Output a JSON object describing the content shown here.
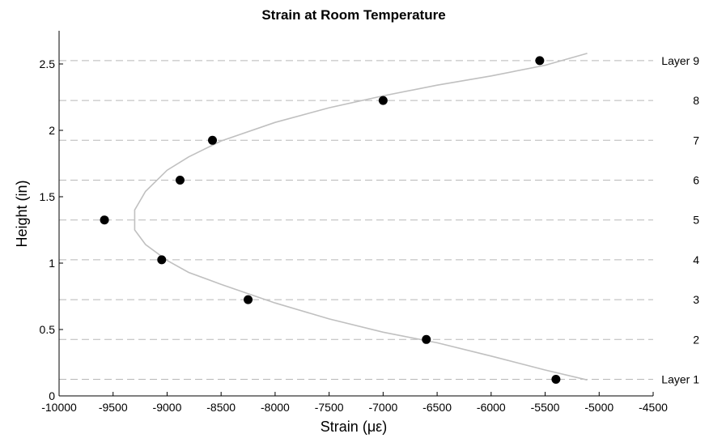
{
  "chart_data": {
    "type": "scatter",
    "title": "Strain at Room Temperature",
    "xlabel": "Strain (με)",
    "ylabel": "Height (in)",
    "xlim": [
      -10000,
      -4500
    ],
    "ylim": [
      0,
      2.75
    ],
    "xticks": [
      "-10000",
      "-9500",
      "-9000",
      "-8500",
      "-8000",
      "-7500",
      "-7000",
      "-6500",
      "-6000",
      "-5500",
      "-5000",
      "-4500"
    ],
    "yticks": [
      "0",
      "0.5",
      "1",
      "1.5",
      "2",
      "2.5"
    ],
    "grid": "horizontal dashed at layer heights",
    "colors": {
      "points": "#000000",
      "fit": "#c0c0c0",
      "gridline": "#b8b8b8"
    },
    "series": [
      {
        "type": "scatter",
        "x": [
          -5400,
          -6600,
          -8250,
          -9050,
          -9580,
          -8880,
          -8580,
          -7000,
          -5550
        ],
        "y": [
          0.125,
          0.425,
          0.725,
          1.025,
          1.325,
          1.625,
          1.925,
          2.225,
          2.525
        ]
      },
      {
        "type": "line",
        "x": [
          -5110,
          -5500,
          -6000,
          -6500,
          -7000,
          -7500,
          -8000,
          -8500,
          -8800,
          -9000,
          -9200,
          -9300,
          -9300,
          -9200,
          -9000,
          -8800,
          -8500,
          -8000,
          -7500,
          -7000,
          -6500,
          -6000,
          -5500,
          -5110
        ],
        "y": [
          0.12,
          0.195,
          0.3,
          0.4,
          0.48,
          0.58,
          0.7,
          0.84,
          0.93,
          1.02,
          1.14,
          1.25,
          1.4,
          1.54,
          1.7,
          1.8,
          1.92,
          2.06,
          2.17,
          2.26,
          2.34,
          2.41,
          2.49,
          2.58
        ]
      }
    ],
    "layer_lines": [
      0.125,
      0.425,
      0.725,
      1.025,
      1.325,
      1.625,
      1.925,
      2.225,
      2.525
    ],
    "layer_labels": [
      "Layer 1",
      "2",
      "3",
      "4",
      "5",
      "6",
      "7",
      "8",
      "Layer 9"
    ]
  }
}
